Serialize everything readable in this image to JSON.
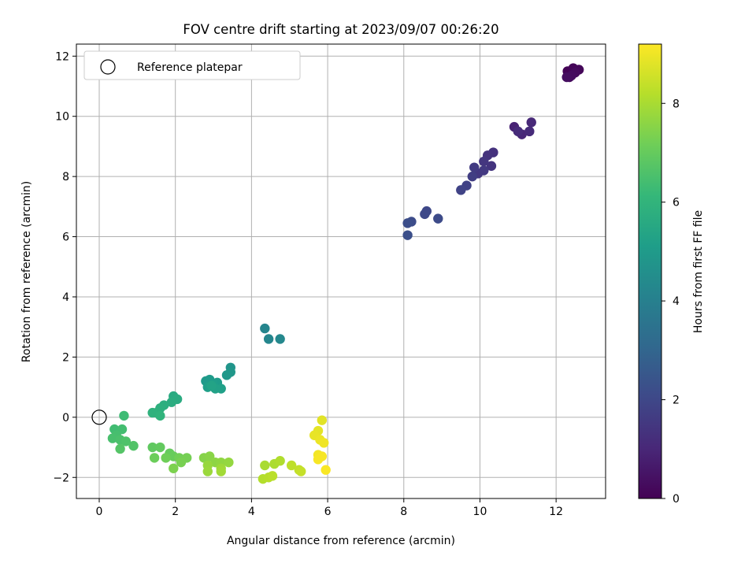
{
  "chart_data": {
    "type": "scatter",
    "title": "FOV centre drift starting at 2023/09/07 00:26:20",
    "xlabel": "Angular distance from reference (arcmin)",
    "ylabel": "Rotation from reference (arcmin)",
    "xlim": [
      -0.6,
      13.3
    ],
    "ylim": [
      -2.7,
      12.4
    ],
    "xticks": [
      0,
      2,
      4,
      6,
      8,
      10,
      12
    ],
    "yticks": [
      -2,
      0,
      2,
      4,
      6,
      8,
      10,
      12
    ],
    "grid": true,
    "legend": {
      "position": "top-left",
      "entries": [
        {
          "label": "Reference platepar",
          "marker": "open-circle"
        }
      ]
    },
    "reference_point": {
      "x": 0,
      "y": 0
    },
    "colorbar": {
      "label": "Hours from first FF file",
      "range": [
        0,
        9.2
      ],
      "ticks": [
        0,
        2,
        4,
        6,
        8
      ],
      "colormap": "viridis"
    },
    "colors": {
      "viridis": [
        "#440154",
        "#482878",
        "#3e4989",
        "#31688e",
        "#26828e",
        "#1f9e89",
        "#35b779",
        "#6ece58",
        "#b5de2b",
        "#fde725"
      ]
    },
    "points": [
      {
        "x": 12.3,
        "y": 11.5,
        "c": 0.05
      },
      {
        "x": 12.45,
        "y": 11.6,
        "c": 0.1
      },
      {
        "x": 12.6,
        "y": 11.55,
        "c": 0.15
      },
      {
        "x": 12.35,
        "y": 11.3,
        "c": 0.2
      },
      {
        "x": 12.5,
        "y": 11.45,
        "c": 0.25
      },
      {
        "x": 12.4,
        "y": 11.35,
        "c": 0.3
      },
      {
        "x": 12.28,
        "y": 11.3,
        "c": 0.35
      },
      {
        "x": 10.9,
        "y": 9.65,
        "c": 0.9
      },
      {
        "x": 11.1,
        "y": 9.4,
        "c": 1.0
      },
      {
        "x": 11.35,
        "y": 9.8,
        "c": 1.05
      },
      {
        "x": 11.3,
        "y": 9.5,
        "c": 1.1
      },
      {
        "x": 11.0,
        "y": 9.5,
        "c": 1.15
      },
      {
        "x": 10.35,
        "y": 8.8,
        "c": 1.3
      },
      {
        "x": 10.2,
        "y": 8.7,
        "c": 1.35
      },
      {
        "x": 10.3,
        "y": 8.35,
        "c": 1.4
      },
      {
        "x": 10.1,
        "y": 8.5,
        "c": 1.45
      },
      {
        "x": 9.95,
        "y": 8.1,
        "c": 1.5
      },
      {
        "x": 10.1,
        "y": 8.2,
        "c": 1.55
      },
      {
        "x": 9.85,
        "y": 8.3,
        "c": 1.6
      },
      {
        "x": 9.8,
        "y": 8.0,
        "c": 1.7
      },
      {
        "x": 9.65,
        "y": 7.7,
        "c": 1.8
      },
      {
        "x": 9.5,
        "y": 7.55,
        "c": 1.85
      },
      {
        "x": 8.6,
        "y": 6.85,
        "c": 2.0
      },
      {
        "x": 8.55,
        "y": 6.75,
        "c": 2.05
      },
      {
        "x": 8.9,
        "y": 6.6,
        "c": 2.1
      },
      {
        "x": 8.2,
        "y": 6.5,
        "c": 2.15
      },
      {
        "x": 8.1,
        "y": 6.45,
        "c": 2.2
      },
      {
        "x": 8.1,
        "y": 6.05,
        "c": 2.25
      },
      {
        "x": 4.35,
        "y": 2.95,
        "c": 4.2
      },
      {
        "x": 4.45,
        "y": 2.6,
        "c": 4.25
      },
      {
        "x": 4.75,
        "y": 2.6,
        "c": 4.3
      },
      {
        "x": 3.45,
        "y": 1.65,
        "c": 4.8
      },
      {
        "x": 3.45,
        "y": 1.5,
        "c": 4.85
      },
      {
        "x": 3.35,
        "y": 1.4,
        "c": 4.9
      },
      {
        "x": 2.8,
        "y": 1.2,
        "c": 4.95
      },
      {
        "x": 2.9,
        "y": 1.25,
        "c": 5.0
      },
      {
        "x": 3.1,
        "y": 1.15,
        "c": 5.05
      },
      {
        "x": 3.0,
        "y": 1.1,
        "c": 5.1
      },
      {
        "x": 2.85,
        "y": 1.0,
        "c": 5.15
      },
      {
        "x": 3.2,
        "y": 0.95,
        "c": 5.2
      },
      {
        "x": 3.05,
        "y": 0.95,
        "c": 5.25
      },
      {
        "x": 2.95,
        "y": 1.05,
        "c": 5.3
      },
      {
        "x": 1.95,
        "y": 0.7,
        "c": 5.6
      },
      {
        "x": 2.05,
        "y": 0.6,
        "c": 5.65
      },
      {
        "x": 1.9,
        "y": 0.5,
        "c": 5.7
      },
      {
        "x": 1.7,
        "y": 0.4,
        "c": 5.75
      },
      {
        "x": 1.6,
        "y": 0.3,
        "c": 5.8
      },
      {
        "x": 1.5,
        "y": 0.15,
        "c": 5.85
      },
      {
        "x": 1.4,
        "y": 0.15,
        "c": 5.9
      },
      {
        "x": 1.6,
        "y": 0.05,
        "c": 5.95
      },
      {
        "x": 0.65,
        "y": 0.05,
        "c": 6.3
      },
      {
        "x": 0.4,
        "y": -0.4,
        "c": 6.35
      },
      {
        "x": 0.6,
        "y": -0.4,
        "c": 6.4
      },
      {
        "x": 0.45,
        "y": -0.6,
        "c": 6.45
      },
      {
        "x": 0.35,
        "y": -0.7,
        "c": 6.5
      },
      {
        "x": 0.55,
        "y": -0.75,
        "c": 6.55
      },
      {
        "x": 0.7,
        "y": -0.8,
        "c": 6.6
      },
      {
        "x": 0.9,
        "y": -0.95,
        "c": 6.65
      },
      {
        "x": 0.55,
        "y": -1.05,
        "c": 6.7
      },
      {
        "x": 1.4,
        "y": -1.0,
        "c": 6.9
      },
      {
        "x": 1.6,
        "y": -1.0,
        "c": 6.95
      },
      {
        "x": 1.85,
        "y": -1.2,
        "c": 7.0
      },
      {
        "x": 1.95,
        "y": -1.3,
        "c": 7.05
      },
      {
        "x": 1.45,
        "y": -1.35,
        "c": 7.1
      },
      {
        "x": 1.75,
        "y": -1.35,
        "c": 7.15
      },
      {
        "x": 2.1,
        "y": -1.35,
        "c": 7.2
      },
      {
        "x": 2.3,
        "y": -1.35,
        "c": 7.25
      },
      {
        "x": 2.15,
        "y": -1.5,
        "c": 7.3
      },
      {
        "x": 1.95,
        "y": -1.7,
        "c": 7.35
      },
      {
        "x": 2.75,
        "y": -1.35,
        "c": 7.5
      },
      {
        "x": 2.9,
        "y": -1.3,
        "c": 7.55
      },
      {
        "x": 3.05,
        "y": -1.5,
        "c": 7.6
      },
      {
        "x": 3.2,
        "y": -1.5,
        "c": 7.65
      },
      {
        "x": 3.4,
        "y": -1.5,
        "c": 7.7
      },
      {
        "x": 2.85,
        "y": -1.6,
        "c": 7.75
      },
      {
        "x": 2.85,
        "y": -1.8,
        "c": 7.8
      },
      {
        "x": 3.2,
        "y": -1.7,
        "c": 7.85
      },
      {
        "x": 3.2,
        "y": -1.8,
        "c": 7.9
      },
      {
        "x": 4.35,
        "y": -1.6,
        "c": 8.0
      },
      {
        "x": 4.6,
        "y": -1.55,
        "c": 8.05
      },
      {
        "x": 4.75,
        "y": -1.45,
        "c": 8.1
      },
      {
        "x": 4.3,
        "y": -2.05,
        "c": 8.15
      },
      {
        "x": 4.45,
        "y": -2.0,
        "c": 8.2
      },
      {
        "x": 4.55,
        "y": -1.95,
        "c": 8.25
      },
      {
        "x": 5.05,
        "y": -1.6,
        "c": 8.3
      },
      {
        "x": 5.25,
        "y": -1.75,
        "c": 8.35
      },
      {
        "x": 5.3,
        "y": -1.8,
        "c": 8.4
      },
      {
        "x": 5.85,
        "y": -0.1,
        "c": 8.8
      },
      {
        "x": 5.75,
        "y": -0.45,
        "c": 8.85
      },
      {
        "x": 5.65,
        "y": -0.6,
        "c": 8.9
      },
      {
        "x": 5.8,
        "y": -0.75,
        "c": 8.95
      },
      {
        "x": 5.9,
        "y": -0.85,
        "c": 9.0
      },
      {
        "x": 5.75,
        "y": -1.25,
        "c": 9.05
      },
      {
        "x": 5.85,
        "y": -1.3,
        "c": 9.1
      },
      {
        "x": 5.75,
        "y": -1.4,
        "c": 9.12
      },
      {
        "x": 5.95,
        "y": -1.75,
        "c": 9.15
      }
    ]
  }
}
